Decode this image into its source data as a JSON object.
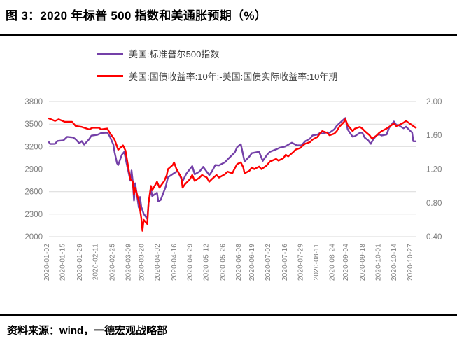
{
  "page": {
    "title": "图 3：2020 年标普 500 指数和美通胀预期（%）",
    "source_note": "资料来源：wind，一德宏观战略部"
  },
  "legend": [
    {
      "label": "美国:标准普尔500指数",
      "color": "#7440A8"
    },
    {
      "label": "美国:国债收益率:10年:-美国:国债实际收益率:10年期",
      "color": "#FE0000"
    }
  ],
  "colors": {
    "sp500_line": "#7440A8",
    "breakeven_line": "#FE0000",
    "gridline": "#d9d9d9",
    "axis_text": "#7f7f7f",
    "separator": "#000000"
  },
  "chart_data": {
    "type": "line",
    "year": "2020",
    "grid": "horizontal",
    "legend_position": "top-left-stacked",
    "left_axis": {
      "min": 2000,
      "max": 3800,
      "ticks": [
        "3800",
        "3500",
        "3200",
        "2900",
        "2600",
        "2300",
        "2000"
      ]
    },
    "right_axis": {
      "min": 0.4,
      "max": 2.0,
      "ticks": [
        "2.00",
        "1.60",
        "1.20",
        "0.80",
        "0.40"
      ]
    },
    "x_tick_labels": [
      "2020-01-02",
      "2020-01-15",
      "2020-01-29",
      "2020-02-11",
      "2020-02-25",
      "2020-03-09",
      "2020-03-20",
      "2020-04-02",
      "2020-04-16",
      "2020-04-29",
      "2020-05-12",
      "2020-05-26",
      "2020-06-08",
      "2020-06-19",
      "2020-07-02",
      "2020-07-16",
      "2020-07-29",
      "2020-08-11",
      "2020-08-24",
      "2020-09-04",
      "2020-09-18",
      "2020-10-01",
      "2020-10-14",
      "2020-10-27"
    ],
    "series": [
      {
        "name": "美国:标准普尔500指数",
        "axis": "left",
        "color": "#7440A8",
        "points": [
          [
            "01-02",
            3258
          ],
          [
            "01-03",
            3235
          ],
          [
            "01-07",
            3237
          ],
          [
            "01-09",
            3275
          ],
          [
            "01-14",
            3283
          ],
          [
            "01-17",
            3330
          ],
          [
            "01-22",
            3322
          ],
          [
            "01-24",
            3295
          ],
          [
            "01-27",
            3244
          ],
          [
            "01-29",
            3273
          ],
          [
            "01-31",
            3226
          ],
          [
            "02-04",
            3298
          ],
          [
            "02-06",
            3346
          ],
          [
            "02-11",
            3358
          ],
          [
            "02-14",
            3380
          ],
          [
            "02-19",
            3386
          ],
          [
            "02-21",
            3338
          ],
          [
            "02-24",
            3226
          ],
          [
            "02-25",
            3128
          ],
          [
            "02-27",
            2979
          ],
          [
            "02-28",
            2954
          ],
          [
            "03-02",
            3090
          ],
          [
            "03-04",
            3130
          ],
          [
            "03-06",
            2972
          ],
          [
            "03-09",
            2746
          ],
          [
            "03-10",
            2882
          ],
          [
            "03-11",
            2741
          ],
          [
            "03-12",
            2481
          ],
          [
            "03-13",
            2711
          ],
          [
            "03-16",
            2386
          ],
          [
            "03-17",
            2529
          ],
          [
            "03-18",
            2398
          ],
          [
            "03-20",
            2305
          ],
          [
            "03-23",
            2237
          ],
          [
            "03-24",
            2447
          ],
          [
            "03-26",
            2630
          ],
          [
            "03-27",
            2541
          ],
          [
            "03-31",
            2585
          ],
          [
            "04-01",
            2470
          ],
          [
            "04-03",
            2489
          ],
          [
            "04-07",
            2659
          ],
          [
            "04-09",
            2790
          ],
          [
            "04-14",
            2846
          ],
          [
            "04-17",
            2875
          ],
          [
            "04-21",
            2737
          ],
          [
            "04-24",
            2837
          ],
          [
            "04-29",
            2940
          ],
          [
            "05-01",
            2831
          ],
          [
            "05-05",
            2868
          ],
          [
            "05-08",
            2930
          ],
          [
            "05-13",
            2820
          ],
          [
            "05-15",
            2864
          ],
          [
            "05-18",
            2954
          ],
          [
            "05-21",
            2949
          ],
          [
            "05-26",
            2992
          ],
          [
            "05-29",
            3044
          ],
          [
            "06-03",
            3123
          ],
          [
            "06-05",
            3194
          ],
          [
            "06-08",
            3232
          ],
          [
            "06-11",
            3002
          ],
          [
            "06-15",
            3067
          ],
          [
            "06-17",
            3113
          ],
          [
            "06-23",
            3131
          ],
          [
            "06-26",
            3009
          ],
          [
            "06-30",
            3100
          ],
          [
            "07-02",
            3130
          ],
          [
            "07-08",
            3170
          ],
          [
            "07-10",
            3185
          ],
          [
            "07-14",
            3198
          ],
          [
            "07-16",
            3215
          ],
          [
            "07-20",
            3252
          ],
          [
            "07-24",
            3216
          ],
          [
            "07-28",
            3218
          ],
          [
            "07-31",
            3271
          ],
          [
            "08-04",
            3307
          ],
          [
            "08-06",
            3349
          ],
          [
            "08-10",
            3360
          ],
          [
            "08-12",
            3380
          ],
          [
            "08-14",
            3373
          ],
          [
            "08-18",
            3390
          ],
          [
            "08-20",
            3385
          ],
          [
            "08-24",
            3431
          ],
          [
            "08-26",
            3478
          ],
          [
            "08-28",
            3508
          ],
          [
            "09-02",
            3581
          ],
          [
            "09-04",
            3427
          ],
          [
            "09-08",
            3332
          ],
          [
            "09-10",
            3339
          ],
          [
            "09-14",
            3384
          ],
          [
            "09-16",
            3385
          ],
          [
            "09-18",
            3319
          ],
          [
            "09-21",
            3281
          ],
          [
            "09-23",
            3237
          ],
          [
            "09-25",
            3298
          ],
          [
            "09-28",
            3352
          ],
          [
            "09-30",
            3363
          ],
          [
            "10-02",
            3348
          ],
          [
            "10-06",
            3361
          ],
          [
            "10-08",
            3447
          ],
          [
            "10-12",
            3534
          ],
          [
            "10-14",
            3489
          ],
          [
            "10-16",
            3484
          ],
          [
            "10-20",
            3443
          ],
          [
            "10-22",
            3465
          ],
          [
            "10-26",
            3401
          ],
          [
            "10-27",
            3391
          ],
          [
            "10-28",
            3271
          ],
          [
            "10-30",
            3270
          ]
        ]
      },
      {
        "name": "美国:国债收益率:10年:-美国:国债实际收益率:10年期",
        "axis": "right",
        "color": "#FE0000",
        "points": [
          [
            "01-02",
            1.8
          ],
          [
            "01-07",
            1.77
          ],
          [
            "01-10",
            1.79
          ],
          [
            "01-15",
            1.76
          ],
          [
            "01-21",
            1.76
          ],
          [
            "01-24",
            1.71
          ],
          [
            "01-29",
            1.7
          ],
          [
            "02-04",
            1.67
          ],
          [
            "02-07",
            1.69
          ],
          [
            "02-12",
            1.69
          ],
          [
            "02-14",
            1.67
          ],
          [
            "02-19",
            1.68
          ],
          [
            "02-21",
            1.63
          ],
          [
            "02-25",
            1.55
          ],
          [
            "02-28",
            1.43
          ],
          [
            "03-03",
            1.48
          ],
          [
            "03-05",
            1.42
          ],
          [
            "03-09",
            1.08
          ],
          [
            "03-11",
            1.05
          ],
          [
            "03-12",
            0.9
          ],
          [
            "03-13",
            0.98
          ],
          [
            "03-16",
            0.82
          ],
          [
            "03-18",
            0.62
          ],
          [
            "03-19",
            0.47
          ],
          [
            "03-20",
            0.6
          ],
          [
            "03-23",
            0.55
          ],
          [
            "03-24",
            0.8
          ],
          [
            "03-26",
            1.0
          ],
          [
            "03-27",
            0.95
          ],
          [
            "03-31",
            1.05
          ],
          [
            "04-02",
            0.98
          ],
          [
            "04-06",
            1.06
          ],
          [
            "04-08",
            1.13
          ],
          [
            "04-09",
            1.2
          ],
          [
            "04-13",
            1.25
          ],
          [
            "04-14",
            1.28
          ],
          [
            "04-16",
            1.2
          ],
          [
            "04-20",
            1.1
          ],
          [
            "04-21",
            0.98
          ],
          [
            "04-23",
            1.02
          ],
          [
            "04-27",
            1.08
          ],
          [
            "04-29",
            1.13
          ],
          [
            "05-01",
            1.06
          ],
          [
            "05-05",
            1.1
          ],
          [
            "05-07",
            1.13
          ],
          [
            "05-11",
            1.1
          ],
          [
            "05-13",
            1.05
          ],
          [
            "05-15",
            1.08
          ],
          [
            "05-19",
            1.13
          ],
          [
            "05-21",
            1.1
          ],
          [
            "05-26",
            1.14
          ],
          [
            "05-28",
            1.17
          ],
          [
            "06-01",
            1.15
          ],
          [
            "06-03",
            1.21
          ],
          [
            "06-05",
            1.26
          ],
          [
            "06-08",
            1.28
          ],
          [
            "06-10",
            1.22
          ],
          [
            "06-11",
            1.15
          ],
          [
            "06-15",
            1.18
          ],
          [
            "06-17",
            1.22
          ],
          [
            "06-19",
            1.2
          ],
          [
            "06-23",
            1.23
          ],
          [
            "06-25",
            1.2
          ],
          [
            "06-29",
            1.24
          ],
          [
            "07-02",
            1.29
          ],
          [
            "07-07",
            1.32
          ],
          [
            "07-09",
            1.3
          ],
          [
            "07-13",
            1.33
          ],
          [
            "07-15",
            1.37
          ],
          [
            "07-17",
            1.35
          ],
          [
            "07-21",
            1.4
          ],
          [
            "07-23",
            1.43
          ],
          [
            "07-27",
            1.45
          ],
          [
            "07-29",
            1.48
          ],
          [
            "07-31",
            1.5
          ],
          [
            "08-04",
            1.52
          ],
          [
            "08-06",
            1.55
          ],
          [
            "08-10",
            1.58
          ],
          [
            "08-12",
            1.62
          ],
          [
            "08-14",
            1.65
          ],
          [
            "08-18",
            1.63
          ],
          [
            "08-20",
            1.6
          ],
          [
            "08-24",
            1.62
          ],
          [
            "08-26",
            1.65
          ],
          [
            "08-28",
            1.7
          ],
          [
            "09-01",
            1.76
          ],
          [
            "09-02",
            1.79
          ],
          [
            "09-04",
            1.72
          ],
          [
            "09-08",
            1.65
          ],
          [
            "09-10",
            1.68
          ],
          [
            "09-14",
            1.7
          ],
          [
            "09-16",
            1.68
          ],
          [
            "09-18",
            1.65
          ],
          [
            "09-22",
            1.6
          ],
          [
            "09-24",
            1.56
          ],
          [
            "09-28",
            1.6
          ],
          [
            "09-30",
            1.63
          ],
          [
            "10-02",
            1.65
          ],
          [
            "10-06",
            1.68
          ],
          [
            "10-08",
            1.7
          ],
          [
            "10-12",
            1.74
          ],
          [
            "10-14",
            1.71
          ],
          [
            "10-16",
            1.72
          ],
          [
            "10-20",
            1.75
          ],
          [
            "10-22",
            1.77
          ],
          [
            "10-26",
            1.73
          ],
          [
            "10-28",
            1.71
          ],
          [
            "10-30",
            1.69
          ]
        ]
      }
    ]
  }
}
